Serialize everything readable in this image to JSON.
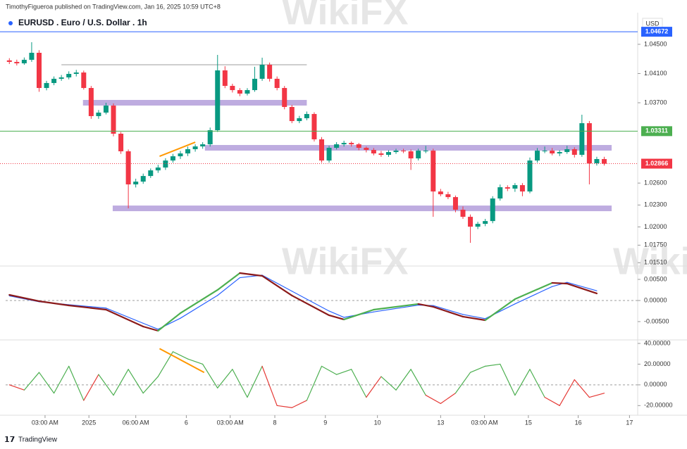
{
  "header": {
    "publisher": "TimothyFigueroa published on TradingView.com, Jan 16, 2025 10:59 UTC+8",
    "currency": "USD",
    "brand": "TradingView",
    "watermark": "WikiFX"
  },
  "chart_data": [
    {
      "type": "candlestick",
      "title": "EURUSD . Euro / U.S. Dollar . 1h",
      "up_color": "#089981",
      "down_color": "#f23645",
      "grid": false,
      "xlim": [
        -0.5,
        84.5
      ],
      "ylim": [
        1.01474,
        1.04914
      ],
      "yticks": [
        {
          "value": 1.045,
          "label": "1.04500"
        },
        {
          "value": 1.041,
          "label": "1.04100"
        },
        {
          "value": 1.037,
          "label": "1.03700"
        },
        {
          "value": 1.026,
          "label": "1.02600"
        },
        {
          "value": 1.023,
          "label": "1.02300"
        },
        {
          "value": 1.02,
          "label": "1.02000"
        },
        {
          "value": 1.0175,
          "label": "1.01750"
        },
        {
          "value": 1.0151,
          "label": "1.01510"
        }
      ],
      "x": [
        0,
        1,
        2,
        3,
        4,
        5,
        6,
        7,
        8,
        9,
        10,
        11,
        12,
        13,
        14,
        15,
        16,
        17,
        18,
        19,
        20,
        21,
        22,
        23,
        24,
        25,
        26,
        27,
        28,
        29,
        30,
        31,
        32,
        33,
        34,
        35,
        36,
        37,
        38,
        39,
        40,
        41,
        42,
        43,
        44,
        45,
        46,
        47,
        48,
        49,
        50,
        51,
        52,
        53,
        54,
        55,
        56,
        57,
        58,
        59,
        60,
        61,
        62,
        63,
        64,
        65,
        66,
        67,
        68,
        69,
        70,
        71,
        72,
        73,
        74,
        75,
        76,
        77,
        78,
        79,
        80
      ],
      "ohlc": [
        [
          1.0428,
          1.0431,
          1.0423,
          1.04259
        ],
        [
          1.04259,
          1.0429,
          1.0421,
          1.0424
        ],
        [
          1.0424,
          1.0432,
          1.0422,
          1.04288
        ],
        [
          1.04288,
          1.04529,
          1.0426,
          1.04384
        ],
        [
          1.04384,
          1.0442,
          1.0385,
          1.03902
        ],
        [
          1.03902,
          1.04,
          1.0387,
          1.0397
        ],
        [
          1.0397,
          1.0406,
          1.0394,
          1.04028
        ],
        [
          1.04028,
          1.0408,
          1.04,
          1.04047
        ],
        [
          1.04047,
          1.0413,
          1.0402,
          1.04095
        ],
        [
          1.04095,
          1.0415,
          1.0406,
          1.04114
        ],
        [
          1.04114,
          1.0414,
          1.0388,
          1.03902
        ],
        [
          1.03902,
          1.0393,
          1.0348,
          1.03517
        ],
        [
          1.03517,
          1.036,
          1.0348,
          1.03565
        ],
        [
          1.03565,
          1.037,
          1.0354,
          1.03661
        ],
        [
          1.03661,
          1.0369,
          1.0324,
          1.03276
        ],
        [
          1.03276,
          1.033,
          1.03,
          1.03035
        ],
        [
          1.03035,
          1.0306,
          1.02254,
          1.02582
        ],
        [
          1.02582,
          1.0266,
          1.0254,
          1.0262
        ],
        [
          1.0262,
          1.0273,
          1.0259,
          1.02697
        ],
        [
          1.02697,
          1.028,
          1.0267,
          1.02774
        ],
        [
          1.02774,
          1.0285,
          1.0274,
          1.02813
        ],
        [
          1.02813,
          1.0294,
          1.0278,
          1.02909
        ],
        [
          1.02909,
          1.03,
          1.0288,
          1.02967
        ],
        [
          1.02967,
          1.0304,
          1.0293,
          1.03006
        ],
        [
          1.03006,
          1.031,
          1.0297,
          1.03064
        ],
        [
          1.03064,
          1.0313,
          1.0303,
          1.03102
        ],
        [
          1.03102,
          1.0316,
          1.0307,
          1.03131
        ],
        [
          1.03131,
          1.0336,
          1.031,
          1.03324
        ],
        [
          1.03324,
          1.04355,
          1.033,
          1.04143
        ],
        [
          1.04143,
          1.042,
          1.039,
          1.03931
        ],
        [
          1.03931,
          1.0396,
          1.0384,
          1.03873
        ],
        [
          1.03873,
          1.039,
          1.0379,
          1.03825
        ],
        [
          1.03825,
          1.039,
          1.038,
          1.03873
        ],
        [
          1.03873,
          1.04192,
          1.0385,
          1.04028
        ],
        [
          1.04028,
          1.04317,
          1.04,
          1.0422
        ],
        [
          1.0422,
          1.0425,
          1.0399,
          1.04028
        ],
        [
          1.04028,
          1.0406,
          1.0387,
          1.03902
        ],
        [
          1.03902,
          1.0393,
          1.0361,
          1.03642
        ],
        [
          1.03642,
          1.0367,
          1.0342,
          1.03449
        ],
        [
          1.03449,
          1.0352,
          1.0342,
          1.03488
        ],
        [
          1.03488,
          1.0358,
          1.0346,
          1.03546
        ],
        [
          1.03546,
          1.0357,
          1.0317,
          1.03199
        ],
        [
          1.03199,
          1.0323,
          1.0288,
          1.02909
        ],
        [
          1.02909,
          1.0311,
          1.0288,
          1.03083
        ],
        [
          1.03083,
          1.0316,
          1.0306,
          1.03131
        ],
        [
          1.03131,
          1.0318,
          1.031,
          1.0315
        ],
        [
          1.0315,
          1.0317,
          1.031,
          1.03131
        ],
        [
          1.03131,
          1.0315,
          1.0305,
          1.03083
        ],
        [
          1.03083,
          1.031,
          1.0302,
          1.03054
        ],
        [
          1.03054,
          1.0308,
          1.0298,
          1.03006
        ],
        [
          1.03006,
          1.0304,
          1.0296,
          1.02987
        ],
        [
          1.02987,
          1.0305,
          1.0296,
          1.03025
        ],
        [
          1.03025,
          1.0307,
          1.03,
          1.03044
        ],
        [
          1.03044,
          1.0307,
          1.0301,
          1.03035
        ],
        [
          1.03035,
          1.0306,
          1.0278,
          1.02938
        ],
        [
          1.02938,
          1.0307,
          1.0291,
          1.03044
        ],
        [
          1.03044,
          1.0311,
          1.0301,
          1.03044
        ],
        [
          1.03044,
          1.0307,
          1.02138,
          1.02485
        ],
        [
          1.02485,
          1.0252,
          1.0242,
          1.02447
        ],
        [
          1.02447,
          1.0248,
          1.0238,
          1.02408
        ],
        [
          1.02408,
          1.0243,
          1.022,
          1.02235
        ],
        [
          1.02235,
          1.0228,
          1.0211,
          1.02138
        ],
        [
          1.02138,
          1.0217,
          1.01782,
          1.02003
        ],
        [
          1.02003,
          1.0207,
          1.0197,
          1.02042
        ],
        [
          1.02042,
          1.0211,
          1.0201,
          1.0208
        ],
        [
          1.0208,
          1.0242,
          1.0205,
          1.02389
        ],
        [
          1.02389,
          1.0258,
          1.0236,
          1.02543
        ],
        [
          1.02543,
          1.0257,
          1.0249,
          1.02524
        ],
        [
          1.02524,
          1.026,
          1.0248,
          1.02572
        ],
        [
          1.02572,
          1.026,
          1.0242,
          1.02485
        ],
        [
          1.02485,
          1.0295,
          1.0246,
          1.02909
        ],
        [
          1.02909,
          1.0308,
          1.0288,
          1.03044
        ],
        [
          1.03044,
          1.031,
          1.0301,
          1.03044
        ],
        [
          1.03044,
          1.0308,
          1.0298,
          1.03006
        ],
        [
          1.03006,
          1.0305,
          1.0297,
          1.03025
        ],
        [
          1.03025,
          1.0311,
          1.03,
          1.03064
        ],
        [
          1.03064,
          1.0309,
          1.0295,
          1.02987
        ],
        [
          1.02987,
          1.03536,
          1.0296,
          1.0342
        ],
        [
          1.0342,
          1.0345,
          1.02582,
          1.02871
        ],
        [
          1.02871,
          1.0296,
          1.0284,
          1.02929
        ],
        [
          1.02929,
          1.0296,
          1.0284,
          1.02866
        ]
      ],
      "price_lines": [
        {
          "value": 1.04672,
          "label": "1.04672",
          "color": "#2962ff",
          "dashed": false
        },
        {
          "value": 1.03311,
          "label": "1.03311",
          "color": "#4caf50",
          "dashed": false
        },
        {
          "value": 1.02866,
          "label": "1.02866",
          "color": "#f23645",
          "dashed": true
        }
      ],
      "levels": [
        {
          "value": 1.0422,
          "x": [
            7,
            40
          ],
          "color": "#9e9e9e"
        }
      ],
      "zones": [
        {
          "value": 1.037,
          "x": [
            9.9,
            40
          ],
          "color": "#b39ddb"
        },
        {
          "value": 1.03083,
          "x": [
            26.3,
            81
          ],
          "color": "#b39ddb"
        },
        {
          "value": 1.02254,
          "x": [
            13.9,
            81
          ],
          "color": "#b39ddb"
        }
      ],
      "trendlines": [
        {
          "x": [
            20.2,
            25
          ],
          "values": [
            1.02967,
            1.0316
          ],
          "color": "#ff9800"
        }
      ]
    },
    {
      "type": "line",
      "grid": false,
      "zero_line": true,
      "xlim": [
        -0.5,
        84.5
      ],
      "ylim": [
        -0.00917,
        0.00783
      ],
      "yticks": [
        {
          "value": 0.005,
          "label": "0.00500"
        },
        {
          "value": 0,
          "label": "0.00000"
        },
        {
          "value": -0.005,
          "label": "-0.00500"
        }
      ],
      "x": [
        0,
        4,
        8,
        13,
        18,
        20,
        23,
        28,
        31,
        34,
        38,
        43,
        45,
        49,
        55,
        57,
        61,
        64,
        68,
        73,
        75,
        79
      ],
      "series": [
        {
          "color": "#2962ff",
          "values": [
            0.0011,
            -0.0003,
            -0.001,
            -0.0018,
            -0.0054,
            -0.0068,
            -0.0042,
            0.0012,
            0.0054,
            0.006,
            0.0022,
            -0.0025,
            -0.004,
            -0.0027,
            -0.0011,
            -0.0012,
            -0.0033,
            -0.0043,
            -0.0008,
            0.0033,
            0.0043,
            0.0023
          ]
        },
        {
          "rise_color": "#4caf50",
          "fall_color": "#8b1a1a",
          "values": [
            0.00133,
            -0.00017,
            -0.00117,
            -0.00217,
            -0.00617,
            -0.00717,
            -0.003,
            0.0025,
            0.0065,
            0.00583,
            0.00117,
            -0.0035,
            -0.0045,
            -0.00217,
            -0.00083,
            -0.0015,
            -0.00383,
            -0.00467,
            0.00033,
            0.00417,
            0.004,
            0.00167
          ]
        }
      ]
    },
    {
      "type": "line",
      "grid": false,
      "zero_line": true,
      "xlim": [
        -0.5,
        84.5
      ],
      "ylim": [
        -29.3,
        42.7
      ],
      "yticks": [
        {
          "value": 40,
          "label": "40.00000"
        },
        {
          "value": 20,
          "label": "20.00000"
        },
        {
          "value": 0,
          "label": "0.00000"
        },
        {
          "value": -20,
          "label": "-20.00000"
        }
      ],
      "xticks": [
        {
          "value": 4.8,
          "label": "03:00 AM"
        },
        {
          "value": 10.7,
          "label": "2025"
        },
        {
          "value": 17,
          "label": "06:00 AM"
        },
        {
          "value": 23.8,
          "label": "6"
        },
        {
          "value": 29.7,
          "label": "03:00 AM"
        },
        {
          "value": 35.7,
          "label": "8"
        },
        {
          "value": 42.5,
          "label": "9"
        },
        {
          "value": 49.5,
          "label": "10"
        },
        {
          "value": 58,
          "label": "13"
        },
        {
          "value": 63.9,
          "label": "03:00 AM"
        },
        {
          "value": 69.8,
          "label": "15"
        },
        {
          "value": 76.5,
          "label": "16"
        },
        {
          "value": 83.4,
          "label": "17"
        }
      ],
      "x": [
        0,
        2,
        4,
        6,
        8,
        10,
        12,
        14,
        16,
        18,
        20,
        22,
        24,
        26,
        28,
        30,
        32,
        34,
        36,
        38,
        40,
        42,
        44,
        46,
        48,
        50,
        52,
        54,
        56,
        58,
        60,
        62,
        64,
        66,
        68,
        70,
        72,
        74,
        76,
        78,
        80
      ],
      "series": [
        {
          "pos_color": "#4caf50",
          "neg_color": "#e53935",
          "values": [
            0,
            -5,
            12,
            -8,
            18,
            -15,
            10,
            -10,
            15,
            -8,
            8,
            32,
            25,
            20,
            -3,
            15,
            -12,
            18,
            -20,
            -22,
            -15,
            18,
            10,
            15,
            -12,
            8,
            -5,
            15,
            -10,
            -18,
            -8,
            12,
            18,
            20,
            -10,
            15,
            -12,
            -20,
            5,
            -12,
            -8
          ]
        }
      ],
      "trendlines": [
        {
          "x": [
            20.2,
            26.2
          ],
          "values": [
            35,
            12
          ],
          "color": "#ff9800"
        }
      ]
    }
  ]
}
